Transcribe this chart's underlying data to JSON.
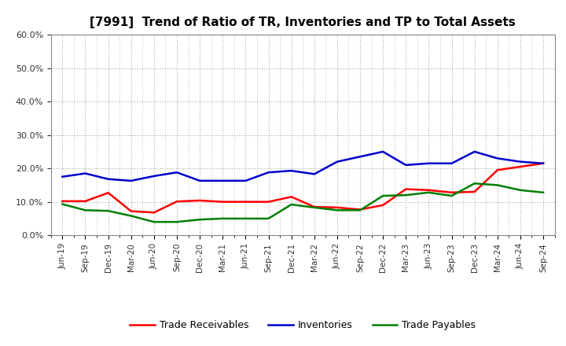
{
  "title": "[7991]  Trend of Ratio of TR, Inventories and TP to Total Assets",
  "x_labels": [
    "Jun-19",
    "Sep-19",
    "Dec-19",
    "Mar-20",
    "Jun-20",
    "Sep-20",
    "Dec-20",
    "Mar-21",
    "Jun-21",
    "Sep-21",
    "Dec-21",
    "Mar-22",
    "Jun-22",
    "Sep-22",
    "Dec-22",
    "Mar-23",
    "Jun-23",
    "Sep-23",
    "Dec-23",
    "Mar-24",
    "Jun-24",
    "Sep-24"
  ],
  "trade_receivables": [
    0.102,
    0.102,
    0.127,
    0.072,
    0.068,
    0.101,
    0.104,
    0.1,
    0.1,
    0.1,
    0.115,
    0.085,
    0.083,
    0.077,
    0.09,
    0.138,
    0.135,
    0.128,
    0.13,
    0.195,
    0.205,
    0.215
  ],
  "inventories": [
    0.175,
    0.185,
    0.168,
    0.163,
    0.177,
    0.188,
    0.163,
    0.163,
    0.163,
    0.188,
    0.193,
    0.183,
    0.22,
    0.235,
    0.25,
    0.21,
    0.215,
    0.215,
    0.25,
    0.23,
    0.22,
    0.215
  ],
  "trade_payables": [
    0.093,
    0.075,
    0.073,
    0.058,
    0.04,
    0.04,
    0.047,
    0.05,
    0.05,
    0.05,
    0.092,
    0.083,
    0.075,
    0.075,
    0.118,
    0.12,
    0.128,
    0.118,
    0.155,
    0.15,
    0.135,
    0.128
  ],
  "line_color_tr": "#ff0000",
  "line_color_inv": "#0000cc",
  "line_color_tp": "#008000",
  "ylim": [
    0.0,
    0.6
  ],
  "yticks": [
    0.0,
    0.1,
    0.2,
    0.3,
    0.4,
    0.5,
    0.6
  ],
  "bg_color": "#ffffff",
  "plot_bg_color": "#ffffff",
  "grid_color": "#aaaaaa",
  "legend_labels": [
    "Trade Receivables",
    "Inventories",
    "Trade Payables"
  ]
}
